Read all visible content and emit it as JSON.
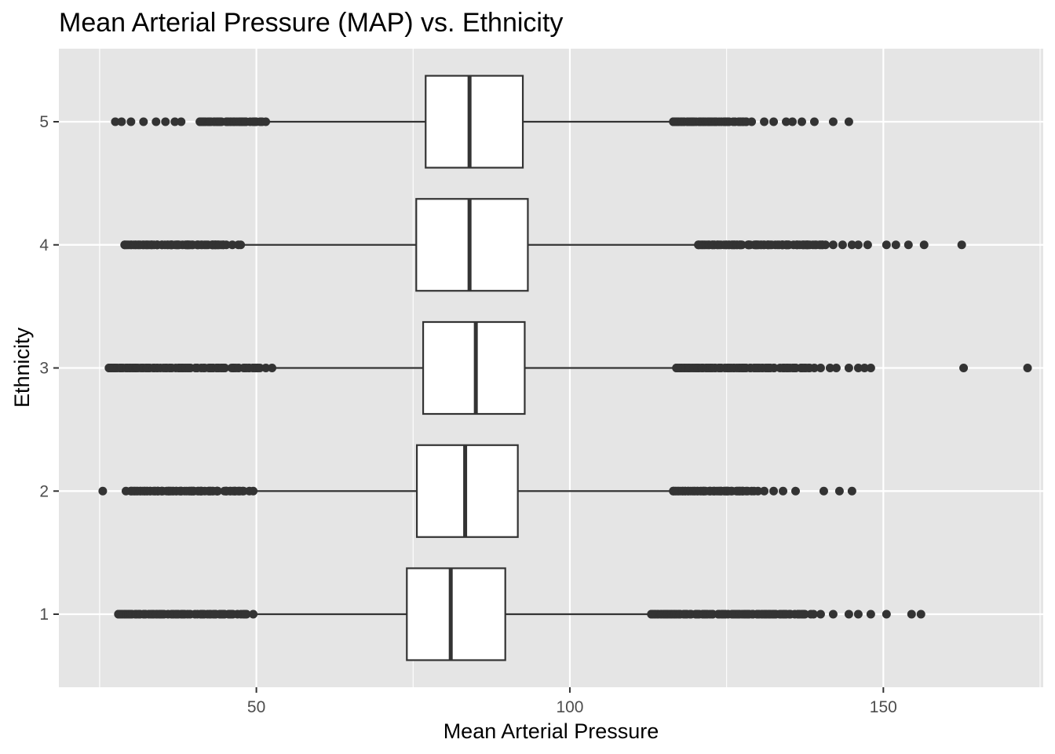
{
  "chart_data": {
    "type": "boxplot",
    "orientation": "horizontal",
    "title": "Mean Arterial Pressure (MAP) vs. Ethnicity",
    "xlabel": "Mean Arterial Pressure",
    "ylabel": "Ethnicity",
    "xlim": [
      18.5,
      175.5
    ],
    "x_ticks": [
      50,
      100,
      150
    ],
    "x_minor": [
      25,
      75,
      125,
      175
    ],
    "categories": [
      "1",
      "2",
      "3",
      "4",
      "5"
    ],
    "grid": true,
    "legend": "none",
    "boxes": [
      {
        "category": "1",
        "whisker_low": 50,
        "q1": 74,
        "median": 81,
        "q3": 89.7,
        "whisker_high": 113,
        "outliers": {
          "low_range": [
            28,
            49.5
          ],
          "high_range": [
            113,
            140
          ],
          "extra": [
            142,
            144.5,
            146,
            148,
            150.5,
            154.5,
            156
          ]
        }
      },
      {
        "category": "2",
        "whisker_low": 50,
        "q1": 75.6,
        "median": 83.3,
        "q3": 91.7,
        "whisker_high": 116.5,
        "outliers": {
          "low_range": [
            30,
            49.5
          ],
          "high_range": [
            116.5,
            130
          ],
          "extra": [
            25.5,
            29.2,
            131,
            132.5,
            134,
            136,
            140.5,
            143,
            145
          ]
        }
      },
      {
        "category": "3",
        "whisker_low": 53,
        "q1": 76.6,
        "median": 85,
        "q3": 92.8,
        "whisker_high": 117,
        "outliers": {
          "low_range": [
            26.5,
            52.5
          ],
          "high_range": [
            117,
            140
          ],
          "extra": [
            141.5,
            142.5,
            144.5,
            146,
            147,
            148,
            162.8,
            173
          ]
        }
      },
      {
        "category": "4",
        "whisker_low": 48,
        "q1": 75.5,
        "median": 84,
        "q3": 93.3,
        "whisker_high": 120.5,
        "outliers": {
          "low_range": [
            29,
            47.5
          ],
          "high_range": [
            120.5,
            142
          ],
          "extra": [
            143.5,
            145,
            146,
            147.5,
            150.5,
            152,
            154,
            156.5,
            162.5
          ]
        }
      },
      {
        "category": "5",
        "whisker_low": 52,
        "q1": 77,
        "median": 84,
        "q3": 92.5,
        "whisker_high": 116.5,
        "outliers": {
          "low_range": [
            41,
            51.5
          ],
          "high_range": [
            116.5,
            129
          ],
          "extra": [
            27.5,
            28.5,
            30,
            32,
            34,
            35.5,
            37,
            38,
            131,
            132.5,
            134.5,
            135.5,
            137,
            139,
            142,
            144.5
          ]
        }
      }
    ]
  }
}
